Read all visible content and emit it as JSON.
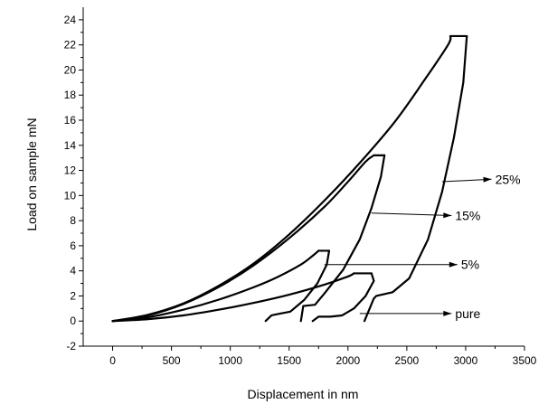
{
  "chart_data": {
    "type": "line",
    "xlabel": "Displacement in nm",
    "ylabel": "Load on sample mN",
    "xlim": [
      -250,
      3500
    ],
    "ylim": [
      -2,
      25
    ],
    "xticks": [
      0,
      500,
      1000,
      1500,
      2000,
      2500,
      3000,
      3500
    ],
    "yticks": [
      -2,
      0,
      2,
      4,
      6,
      8,
      10,
      12,
      14,
      16,
      18,
      20,
      22,
      24
    ],
    "grid": false,
    "series": [
      {
        "name": "pure",
        "loading": [
          [
            0,
            0
          ],
          [
            300,
            0.15
          ],
          [
            600,
            0.45
          ],
          [
            900,
            0.9
          ],
          [
            1200,
            1.45
          ],
          [
            1500,
            2.1
          ],
          [
            1800,
            2.9
          ],
          [
            2000,
            3.55
          ],
          [
            2050,
            3.8
          ]
        ],
        "hold": [
          [
            2050,
            3.8
          ],
          [
            2200,
            3.8
          ]
        ],
        "unloading": [
          [
            2200,
            3.8
          ],
          [
            2220,
            3.2
          ],
          [
            2150,
            2.0
          ],
          [
            2050,
            1.0
          ],
          [
            1950,
            0.45
          ],
          [
            1850,
            0.35
          ],
          [
            1750,
            0.35
          ],
          [
            1700,
            0.0
          ]
        ]
      },
      {
        "name": "5%",
        "loading": [
          [
            0,
            0
          ],
          [
            300,
            0.3
          ],
          [
            600,
            0.9
          ],
          [
            900,
            1.7
          ],
          [
            1200,
            2.7
          ],
          [
            1400,
            3.5
          ],
          [
            1600,
            4.5
          ],
          [
            1700,
            5.2
          ],
          [
            1750,
            5.6
          ]
        ],
        "hold": [
          [
            1750,
            5.6
          ],
          [
            1840,
            5.6
          ]
        ],
        "unloading": [
          [
            1840,
            5.6
          ],
          [
            1820,
            4.5
          ],
          [
            1740,
            3.0
          ],
          [
            1630,
            1.7
          ],
          [
            1510,
            0.75
          ],
          [
            1400,
            0.55
          ],
          [
            1350,
            0.45
          ],
          [
            1300,
            0.0
          ]
        ]
      },
      {
        "name": "15%",
        "loading": [
          [
            0,
            0
          ],
          [
            300,
            0.45
          ],
          [
            600,
            1.35
          ],
          [
            900,
            2.7
          ],
          [
            1200,
            4.45
          ],
          [
            1500,
            6.6
          ],
          [
            1800,
            9.1
          ],
          [
            2000,
            11.1
          ],
          [
            2150,
            12.7
          ],
          [
            2220,
            13.2
          ]
        ],
        "hold": [
          [
            2220,
            13.2
          ],
          [
            2310,
            13.2
          ]
        ],
        "unloading": [
          [
            2310,
            13.2
          ],
          [
            2280,
            11.5
          ],
          [
            2200,
            9.0
          ],
          [
            2100,
            6.5
          ],
          [
            1960,
            4.1
          ],
          [
            1800,
            2.2
          ],
          [
            1720,
            1.3
          ],
          [
            1620,
            1.2
          ],
          [
            1600,
            0.0
          ]
        ]
      },
      {
        "name": "25%",
        "loading": [
          [
            0,
            0
          ],
          [
            300,
            0.5
          ],
          [
            600,
            1.4
          ],
          [
            900,
            2.8
          ],
          [
            1200,
            4.6
          ],
          [
            1500,
            6.9
          ],
          [
            1800,
            9.6
          ],
          [
            2100,
            12.6
          ],
          [
            2400,
            15.9
          ],
          [
            2650,
            19.2
          ],
          [
            2850,
            22.0
          ],
          [
            2870,
            22.7
          ]
        ],
        "hold": [
          [
            2870,
            22.7
          ],
          [
            3010,
            22.7
          ]
        ],
        "unloading": [
          [
            3010,
            22.7
          ],
          [
            2980,
            19.0
          ],
          [
            2900,
            14.6
          ],
          [
            2800,
            10.3
          ],
          [
            2680,
            6.5
          ],
          [
            2520,
            3.4
          ],
          [
            2380,
            2.3
          ],
          [
            2240,
            2.0
          ],
          [
            2220,
            1.8
          ],
          [
            2140,
            0.0
          ]
        ]
      }
    ],
    "annotations": [
      {
        "text": "25%",
        "arrow_from": [
          2800,
          11.1
        ],
        "arrow_to": [
          3220,
          11.3
        ]
      },
      {
        "text": "15%",
        "arrow_from": [
          2200,
          8.6
        ],
        "arrow_to": [
          2880,
          8.4
        ]
      },
      {
        "text": "5%",
        "arrow_from": [
          1800,
          4.5
        ],
        "arrow_to": [
          2930,
          4.5
        ]
      },
      {
        "text": "pure",
        "arrow_from": [
          2100,
          0.6
        ],
        "arrow_to": [
          2880,
          0.6
        ]
      }
    ]
  }
}
